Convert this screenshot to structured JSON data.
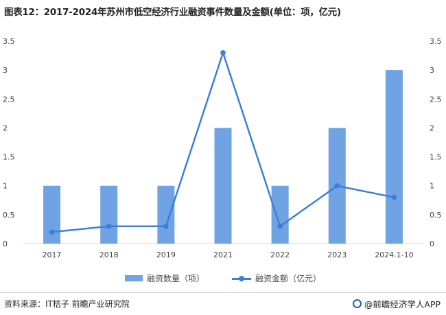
{
  "title": "图表12：2017-2024年苏州市低空经济行业融资事件数量及金额(单位：项，亿元)",
  "colors": {
    "bar": "#6fa3e3",
    "line": "#3c7fd6",
    "axis": "#d9d9d9"
  },
  "chart_data": {
    "type": "bar",
    "categories": [
      "2017",
      "2018",
      "2019",
      "2021",
      "2022",
      "2023",
      "2024.1-10"
    ],
    "series": [
      {
        "name": "融资数量（项）",
        "type": "bar",
        "axis": "left",
        "values": [
          1,
          1,
          1,
          2,
          1,
          2,
          3
        ]
      },
      {
        "name": "融资金额（亿元）",
        "type": "line",
        "axis": "right",
        "values": [
          0.2,
          0.3,
          0.3,
          3.3,
          0.3,
          1.0,
          0.8
        ]
      }
    ],
    "ylim": [
      0,
      3.5
    ],
    "y2lim": [
      0,
      3.5
    ],
    "yticks": [
      "0",
      "0.5",
      "1",
      "1.5",
      "2",
      "2.5",
      "3",
      "3.5"
    ],
    "y2ticks": [
      "0",
      "0.5",
      "1",
      "1.5",
      "2",
      "2.5",
      "3",
      "3.5"
    ],
    "grid": false,
    "legend_position": "bottom"
  },
  "legend": {
    "bar_label": "融资数量（项）",
    "line_label": "融资金额（亿元）"
  },
  "footer": {
    "source": "资料来源：IT桔子 前瞻产业研究院",
    "brand": "@前瞻经济学人APP"
  }
}
